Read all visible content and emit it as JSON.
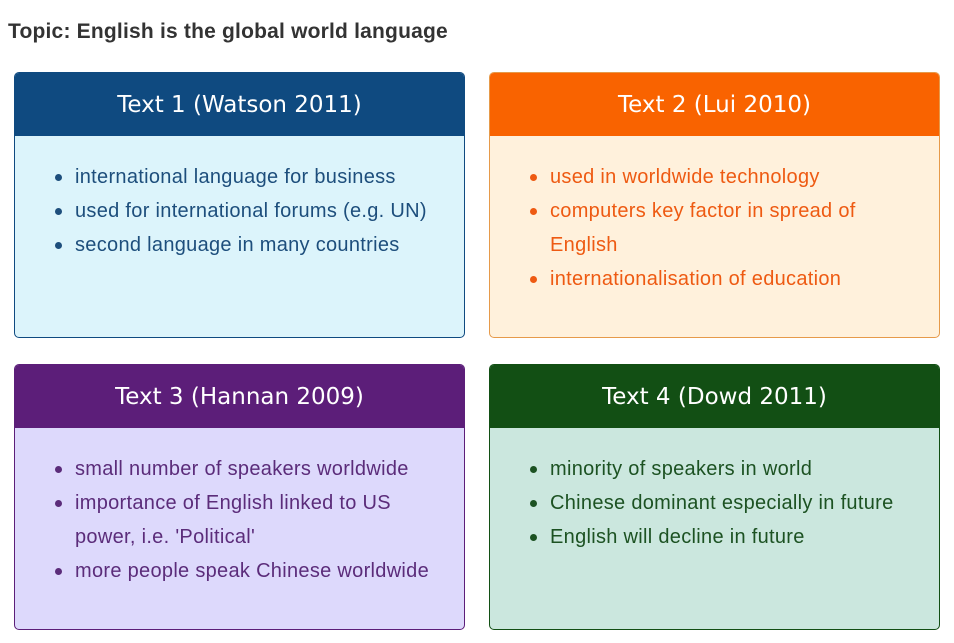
{
  "topic": "Topic: English is the global world language",
  "cards": [
    {
      "title": "Text 1 (Watson 2011)",
      "items": [
        "international language for business",
        "used for international forums (e.g. UN)",
        "second language in many countries"
      ]
    },
    {
      "title": "Text 2 (Lui 2010)",
      "items": [
        "used in worldwide technology",
        "computers key factor in spread of English",
        "internationalisation of education"
      ]
    },
    {
      "title": "Text 3 (Hannan 2009)",
      "items": [
        "small number of speakers worldwide",
        "importance of English linked to US power, i.e. 'Political'",
        "more people speak Chinese worldwide"
      ]
    },
    {
      "title": "Text 4 (Dowd 2011)",
      "items": [
        "minority of speakers in world",
        "Chinese dominant especially in future",
        "English will decline in future"
      ]
    }
  ],
  "colors": {
    "card1_header": "#0f4a80",
    "card1_body": "#dcf4fb",
    "card2_header": "#f96300",
    "card2_body": "#fff1dc",
    "card3_header": "#5c1e79",
    "card3_body": "#ddd9fc",
    "card4_header": "#124f14",
    "card4_body": "#cbe7de"
  }
}
